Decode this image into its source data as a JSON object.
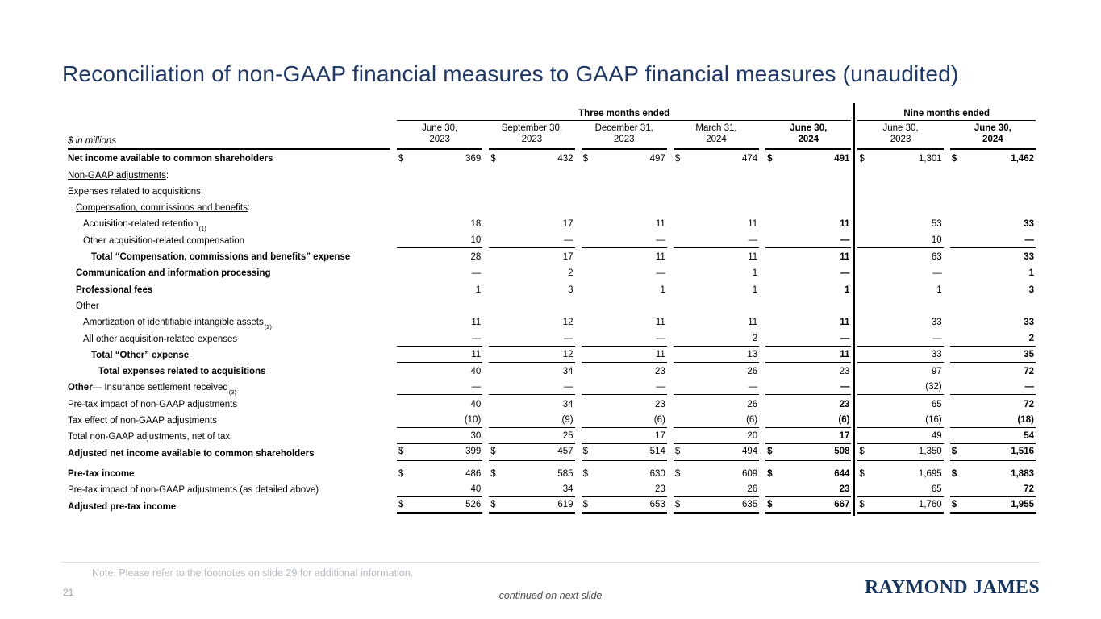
{
  "slide": {
    "title": "Reconciliation of non-GAAP financial measures to GAAP financial measures (unaudited)",
    "page_number": "21",
    "note": "Note: Please refer to the footnotes on slide 29 for additional information.",
    "continued": "continued on next slide",
    "logo_text": "RAYMOND JAMES"
  },
  "colors": {
    "title": "#1f3864",
    "logo": "#17365d",
    "note_text": "#b3bac3",
    "continued_text": "#4d4d4d",
    "table_rule": "#000000",
    "footer_divider": "#d9d9d9"
  },
  "table": {
    "unit_label": "$ in millions",
    "groups": [
      {
        "label": "Three months ended",
        "span": 5
      },
      {
        "label": "Nine months ended",
        "span": 2
      }
    ],
    "columns": [
      {
        "line1": "June 30,",
        "line2": "2023",
        "bold": false
      },
      {
        "line1": "September 30,",
        "line2": "2023",
        "bold": false
      },
      {
        "line1": "December 31,",
        "line2": "2023",
        "bold": false
      },
      {
        "line1": "March 31,",
        "line2": "2024",
        "bold": false
      },
      {
        "line1": "June 30,",
        "line2": "2024",
        "bold": true
      },
      {
        "line1": "June 30,",
        "line2": "2023",
        "bold": false
      },
      {
        "line1": "June 30,",
        "line2": "2024",
        "bold": true
      }
    ],
    "rows": [
      {
        "label": "Net income available to common shareholders",
        "bold": true,
        "indent": 0,
        "dollar": true,
        "values": [
          "369",
          "432",
          "497",
          "474",
          "491",
          "1,301",
          "1,462"
        ],
        "rule": "none"
      },
      {
        "label": "Non-GAAP adjustments",
        "suffix": ":",
        "underline": true,
        "indent": 0,
        "values": [
          "",
          "",
          "",
          "",
          "",
          "",
          ""
        ],
        "rule": "none"
      },
      {
        "label": "Expenses related to acquisitions",
        "suffix": ":",
        "indent": 0,
        "values": [
          "",
          "",
          "",
          "",
          "",
          "",
          ""
        ],
        "rule": "none"
      },
      {
        "label": "Compensation, commissions and benefits",
        "suffix": ":",
        "underline": true,
        "indent": 1,
        "values": [
          "",
          "",
          "",
          "",
          "",
          "",
          ""
        ],
        "rule": "none"
      },
      {
        "label": "Acquisition-related retention",
        "sup": "(1)",
        "indent": 2,
        "values": [
          "18",
          "17",
          "11",
          "11",
          "11",
          "53",
          "33"
        ],
        "rule": "none"
      },
      {
        "label": "Other acquisition-related compensation",
        "indent": 2,
        "values": [
          "10",
          "—",
          "—",
          "—",
          "—",
          "10",
          "—"
        ],
        "rule": "single"
      },
      {
        "label": "Total “Compensation, commissions and benefits” expense",
        "bold": true,
        "indent": 3,
        "values": [
          "28",
          "17",
          "11",
          "11",
          "11",
          "63",
          "33"
        ],
        "rule": "none"
      },
      {
        "label": "Communication and information processing",
        "bold": true,
        "indent": 1,
        "values": [
          "—",
          "2",
          "—",
          "1",
          "—",
          "—",
          "1"
        ],
        "rule": "none"
      },
      {
        "label": "Professional fees",
        "bold": true,
        "indent": 1,
        "values": [
          "1",
          "3",
          "1",
          "1",
          "1",
          "1",
          "3"
        ],
        "rule": "none"
      },
      {
        "label": "Other",
        "underline": true,
        "indent": 1,
        "values": [
          "",
          "",
          "",
          "",
          "",
          "",
          ""
        ],
        "rule": "none"
      },
      {
        "label": "Amortization of identifiable intangible assets",
        "sup": "(2)",
        "indent": 2,
        "values": [
          "11",
          "12",
          "11",
          "11",
          "11",
          "33",
          "33"
        ],
        "rule": "none"
      },
      {
        "label": "All other acquisition-related expenses",
        "indent": 2,
        "values": [
          "—",
          "—",
          "—",
          "2",
          "—",
          "—",
          "2"
        ],
        "rule": "single"
      },
      {
        "label": "Total “Other” expense",
        "bold": true,
        "indent": 3,
        "values": [
          "11",
          "12",
          "11",
          "13",
          "11",
          "33",
          "35"
        ],
        "rule": "single"
      },
      {
        "label": "Total expenses related to acquisitions",
        "bold": true,
        "indent": 4,
        "values": [
          "40",
          "34",
          "23",
          "26",
          "23",
          "97",
          "72"
        ],
        "rule": "none",
        "plain_cols": [
          4
        ]
      },
      {
        "label_rich": {
          "bold": "Other",
          "rest": " — Insurance settlement received"
        },
        "sup": "(3)",
        "indent": 0,
        "values": [
          "—",
          "—",
          "—",
          "—",
          "—",
          "(32)",
          "—"
        ],
        "rule": "single"
      },
      {
        "label": "Pre-tax impact of non-GAAP adjustments",
        "indent": 0,
        "values": [
          "40",
          "34",
          "23",
          "26",
          "23",
          "65",
          "72"
        ],
        "rule": "none"
      },
      {
        "label": "Tax effect of non-GAAP adjustments",
        "indent": 0,
        "values": [
          "(10)",
          "(9)",
          "(6)",
          "(6)",
          "(6)",
          "(16)",
          "(18)"
        ],
        "rule": "single"
      },
      {
        "label": "Total non-GAAP adjustments, net of tax",
        "indent": 0,
        "values": [
          "30",
          "25",
          "17",
          "20",
          "17",
          "49",
          "54"
        ],
        "rule": "single"
      },
      {
        "label": "Adjusted net income available to common shareholders",
        "bold": true,
        "indent": 0,
        "dollar": true,
        "values": [
          "399",
          "457",
          "514",
          "494",
          "508",
          "1,350",
          "1,516"
        ],
        "rule": "double"
      },
      {
        "label": "Pre-tax income",
        "bold": true,
        "indent": 0,
        "dollar": true,
        "spacer": true,
        "values": [
          "486",
          "585",
          "630",
          "609",
          "644",
          "1,695",
          "1,883"
        ],
        "rule": "none"
      },
      {
        "label": "Pre-tax impact of non-GAAP adjustments (as detailed above)",
        "indent": 0,
        "values": [
          "40",
          "34",
          "23",
          "26",
          "23",
          "65",
          "72"
        ],
        "rule": "single"
      },
      {
        "label": "Adjusted pre-tax income",
        "bold": true,
        "indent": 0,
        "dollar": true,
        "values": [
          "526",
          "619",
          "653",
          "635",
          "667",
          "1,760",
          "1,955"
        ],
        "rule": "double"
      }
    ]
  }
}
